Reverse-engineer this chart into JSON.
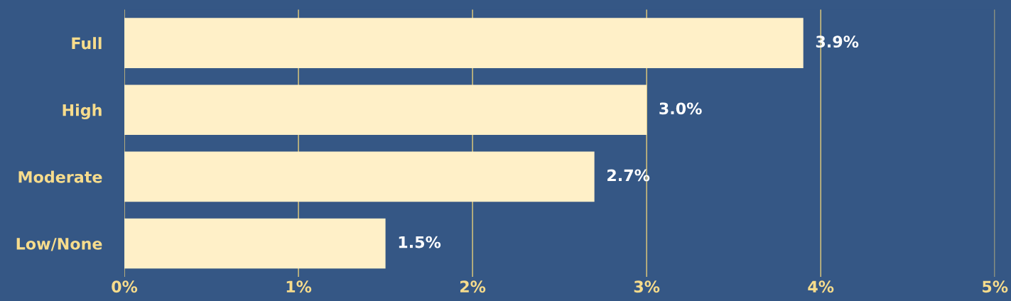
{
  "chart_data": {
    "type": "bar",
    "orientation": "horizontal",
    "categories": [
      "Full",
      "High",
      "Moderate",
      "Low/None"
    ],
    "values": [
      3.9,
      3.0,
      2.7,
      1.5
    ],
    "value_labels": [
      "3.9%",
      "3.0%",
      "2.7%",
      "1.5%"
    ],
    "color": "#fff0c8",
    "xlim": [
      0,
      5
    ],
    "xticks": [
      {
        "value": 0,
        "label": "0%"
      },
      {
        "value": 1,
        "label": "1%"
      },
      {
        "value": 2,
        "label": "2%"
      },
      {
        "value": 3,
        "label": "3%"
      },
      {
        "value": 4,
        "label": "4%"
      },
      {
        "value": 5,
        "label": "5%"
      }
    ],
    "grid": "x",
    "legend": false
  }
}
